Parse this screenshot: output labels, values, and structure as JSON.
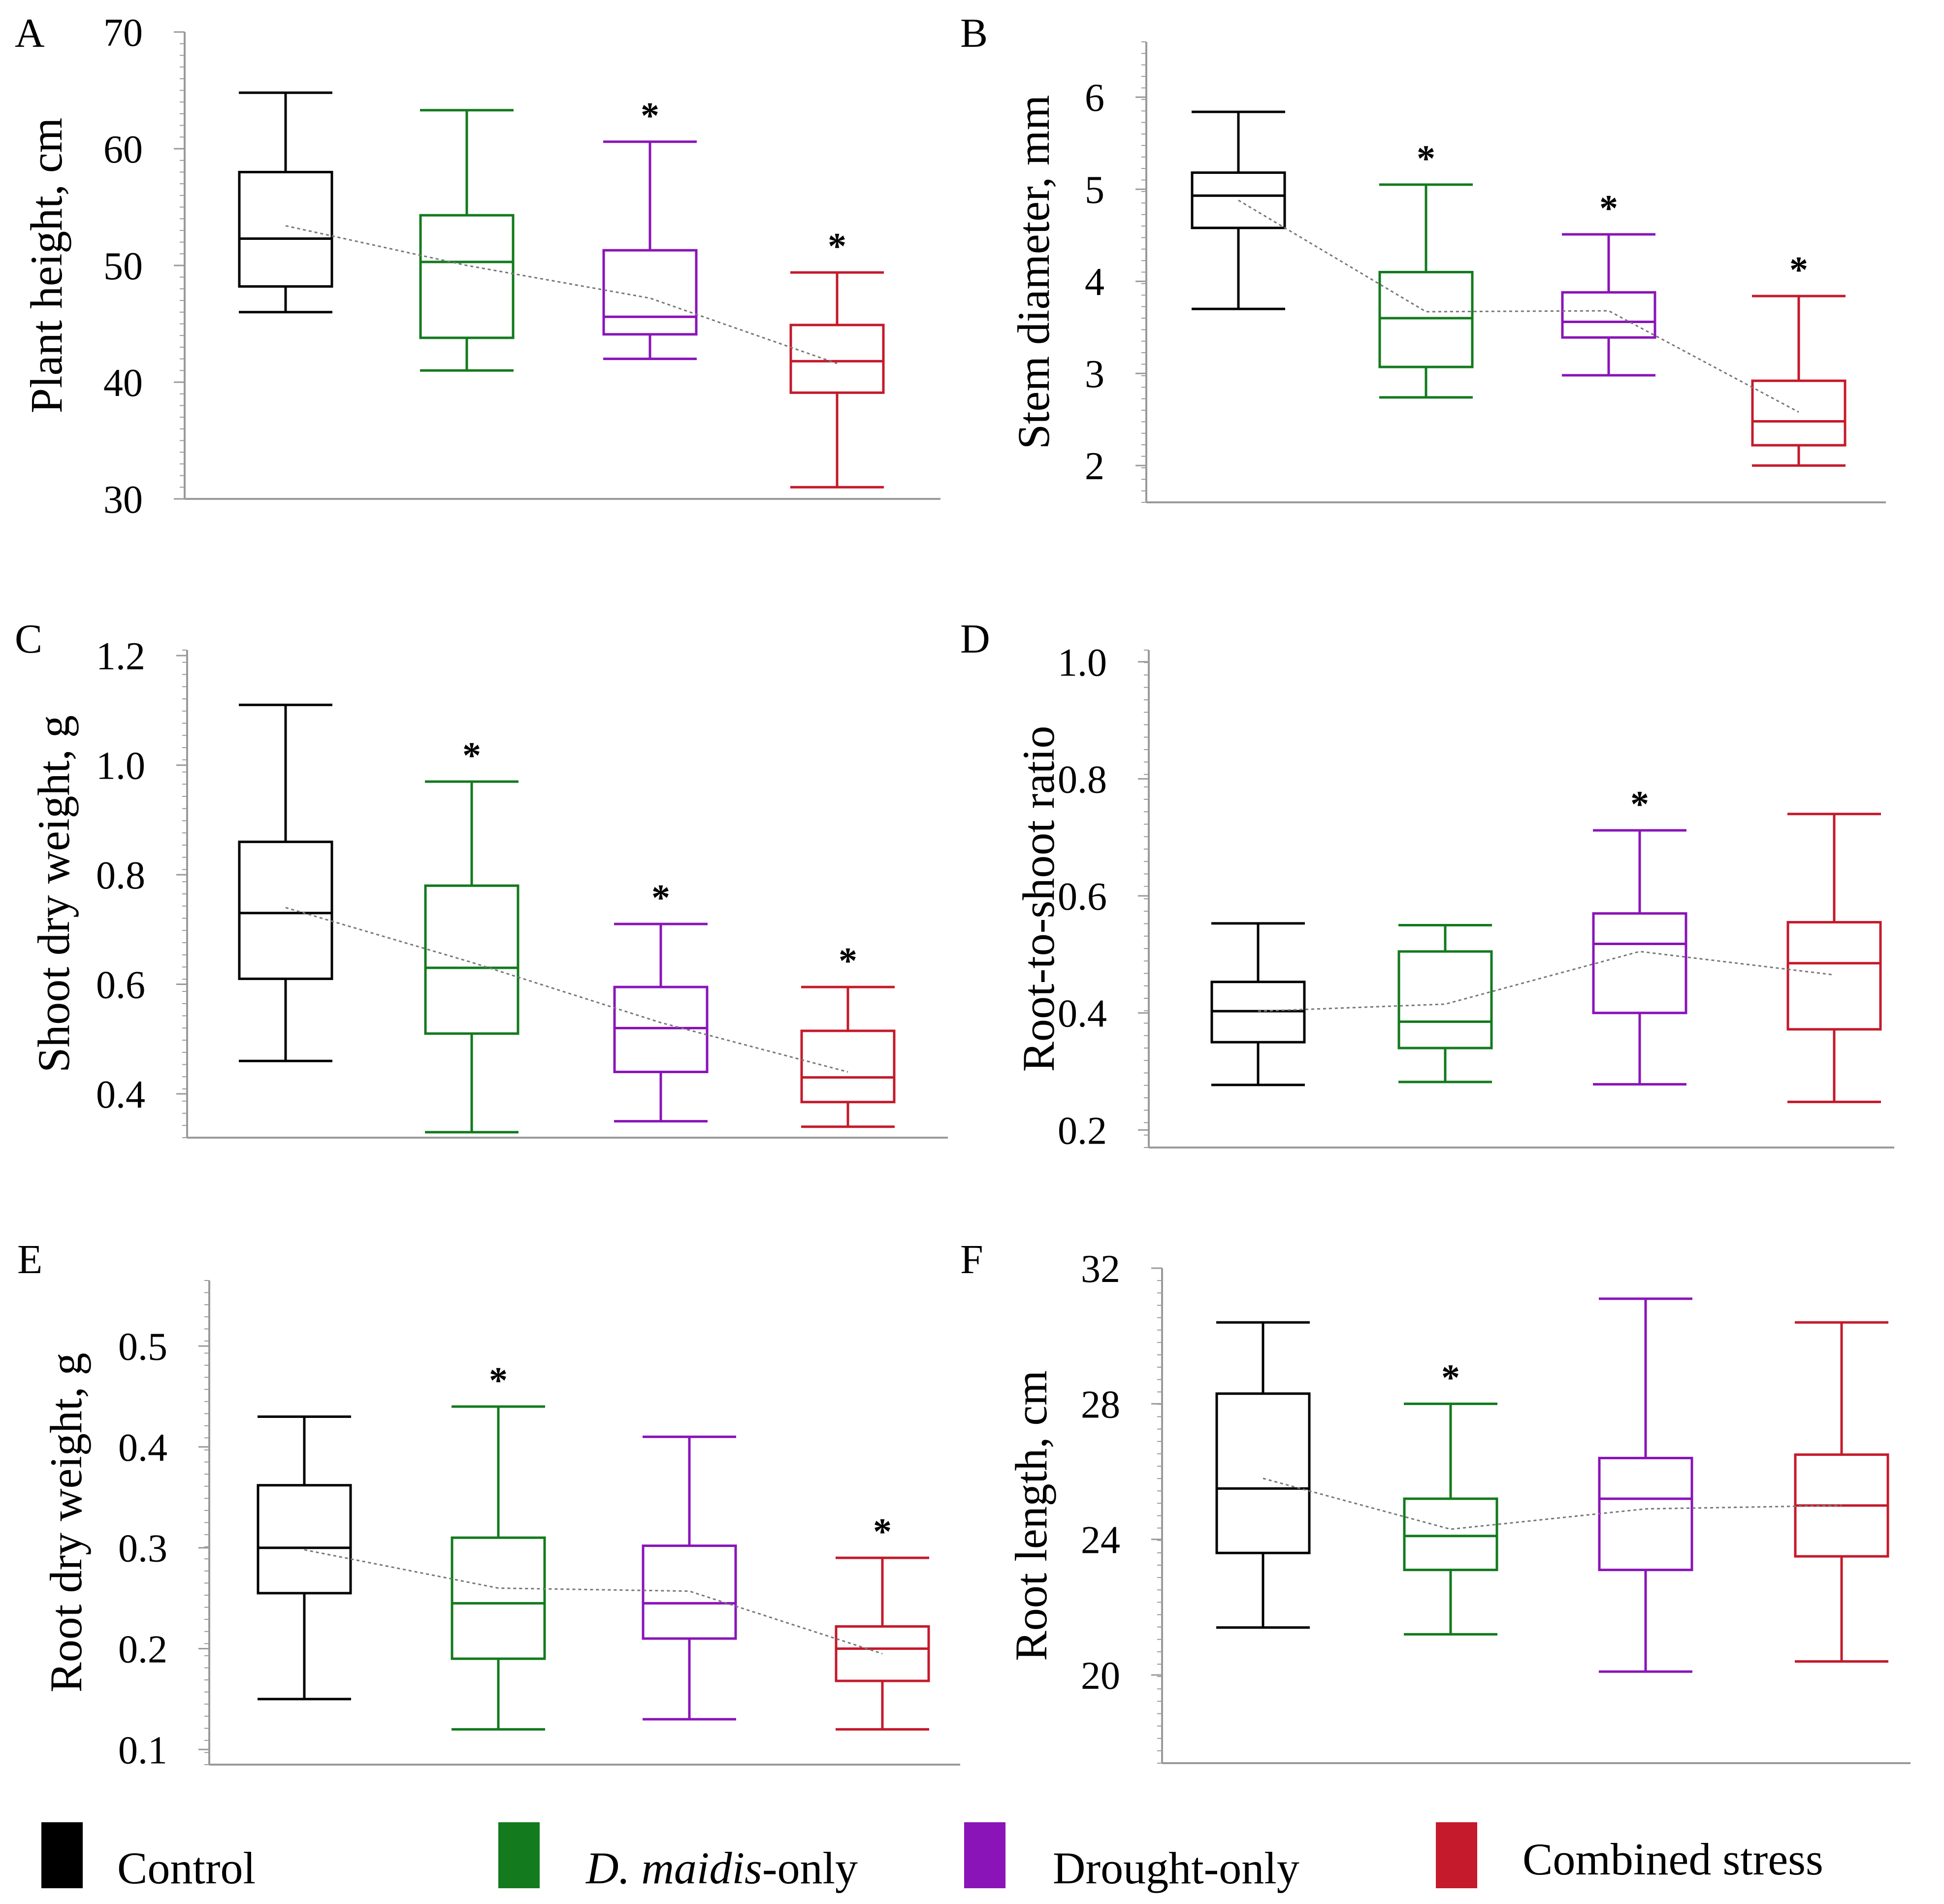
{
  "colors": {
    "control": "#000000",
    "d_maidis": "#137a1e",
    "drought": "#8a14b8",
    "combined": "#c41a2b",
    "trend": "#777777",
    "axis": "#9a9a9a"
  },
  "legend": {
    "control": "Control",
    "d_maidis_species": "D. maidis",
    "d_maidis_suffix": "-only",
    "drought": "Drought-only",
    "combined": "Combined stress"
  },
  "significance_marker": "*",
  "chart_data": [
    {
      "panel": "A",
      "type": "box",
      "ylabel": "Plant height, cm",
      "ylim": [
        30,
        70
      ],
      "yticks": [
        30,
        40,
        50,
        60,
        70
      ],
      "ytick_labels": [
        "30",
        "40",
        "50",
        "60",
        "70"
      ],
      "groups": [
        "Control",
        "D. maidis-only",
        "Drought-only",
        "Combined stress"
      ],
      "boxes": [
        {
          "min": 46.0,
          "q1": 48.2,
          "median": 52.3,
          "q3": 58.0,
          "max": 64.8,
          "mean": 53.4,
          "sig": false
        },
        {
          "min": 41.0,
          "q1": 43.8,
          "median": 50.3,
          "q3": 54.3,
          "max": 63.3,
          "mean": 50.0,
          "sig": false
        },
        {
          "min": 42.0,
          "q1": 44.1,
          "median": 45.6,
          "q3": 51.3,
          "max": 60.6,
          "mean": 47.2,
          "sig": true
        },
        {
          "min": 31.0,
          "q1": 39.1,
          "median": 41.8,
          "q3": 44.9,
          "max": 49.4,
          "mean": 41.6,
          "sig": true
        }
      ]
    },
    {
      "panel": "B",
      "type": "box",
      "ylabel": "Stem diameter, mm",
      "ylim": [
        1.6,
        6.6
      ],
      "yticks": [
        2,
        3,
        4,
        5,
        6
      ],
      "ytick_labels": [
        "2",
        "3",
        "4",
        "5",
        "6"
      ],
      "groups": [
        "Control",
        "D. maidis-only",
        "Drought-only",
        "Combined stress"
      ],
      "boxes": [
        {
          "min": 3.7,
          "q1": 4.58,
          "median": 4.93,
          "q3": 5.18,
          "max": 5.84,
          "mean": 4.88,
          "sig": false
        },
        {
          "min": 2.74,
          "q1": 3.07,
          "median": 3.6,
          "q3": 4.1,
          "max": 5.05,
          "mean": 3.67,
          "sig": true
        },
        {
          "min": 2.98,
          "q1": 3.39,
          "median": 3.56,
          "q3": 3.88,
          "max": 4.51,
          "mean": 3.68,
          "sig": true
        },
        {
          "min": 2.0,
          "q1": 2.22,
          "median": 2.48,
          "q3": 2.92,
          "max": 3.84,
          "mean": 2.58,
          "sig": true
        }
      ]
    },
    {
      "panel": "C",
      "type": "box",
      "ylabel": "Shoot dry weight, g",
      "ylim": [
        0.32,
        1.21
      ],
      "yticks": [
        0.4,
        0.6,
        0.8,
        1.0,
        1.2
      ],
      "ytick_labels": [
        "0.4",
        "0.6",
        "0.8",
        "1.0",
        "1.2"
      ],
      "groups": [
        "Control",
        "D. maidis-only",
        "Drought-only",
        "Combined stress"
      ],
      "boxes": [
        {
          "min": 0.46,
          "q1": 0.61,
          "median": 0.73,
          "q3": 0.86,
          "max": 1.11,
          "mean": 0.74,
          "sig": false
        },
        {
          "min": 0.33,
          "q1": 0.51,
          "median": 0.63,
          "q3": 0.78,
          "max": 0.97,
          "mean": 0.64,
          "sig": true
        },
        {
          "min": 0.35,
          "q1": 0.44,
          "median": 0.52,
          "q3": 0.595,
          "max": 0.71,
          "mean": 0.53,
          "sig": true
        },
        {
          "min": 0.34,
          "q1": 0.385,
          "median": 0.43,
          "q3": 0.515,
          "max": 0.595,
          "mean": 0.44,
          "sig": true
        }
      ]
    },
    {
      "panel": "D",
      "type": "box",
      "ylabel": "Root-to-shoot ratio",
      "ylim": [
        0.17,
        1.02
      ],
      "yticks": [
        0.2,
        0.4,
        0.6,
        0.8,
        1.0
      ],
      "ytick_labels": [
        "0.2",
        "0.4",
        "0.6",
        "0.8",
        "1.0"
      ],
      "groups": [
        "Control",
        "D. maidis-only",
        "Drought-only",
        "Combined stress"
      ],
      "boxes": [
        {
          "min": 0.277,
          "q1": 0.35,
          "median": 0.403,
          "q3": 0.453,
          "max": 0.553,
          "mean": 0.403,
          "sig": false
        },
        {
          "min": 0.282,
          "q1": 0.34,
          "median": 0.385,
          "q3": 0.505,
          "max": 0.55,
          "mean": 0.415,
          "sig": false
        },
        {
          "min": 0.278,
          "q1": 0.4,
          "median": 0.518,
          "q3": 0.57,
          "max": 0.712,
          "mean": 0.505,
          "sig": true
        },
        {
          "min": 0.248,
          "q1": 0.372,
          "median": 0.485,
          "q3": 0.555,
          "max": 0.74,
          "mean": 0.465,
          "sig": false
        }
      ]
    },
    {
      "panel": "E",
      "type": "box",
      "ylabel": "Root dry weight, g",
      "ylim": [
        0.085,
        0.565
      ],
      "yticks": [
        0.1,
        0.2,
        0.3,
        0.4,
        0.5
      ],
      "ytick_labels": [
        "0.1",
        "0.2",
        "0.3",
        "0.4",
        "0.5"
      ],
      "groups": [
        "Control",
        "D. maidis-only",
        "Drought-only",
        "Combined stress"
      ],
      "boxes": [
        {
          "min": 0.15,
          "q1": 0.255,
          "median": 0.3,
          "q3": 0.362,
          "max": 0.43,
          "mean": 0.298,
          "sig": false
        },
        {
          "min": 0.12,
          "q1": 0.19,
          "median": 0.245,
          "q3": 0.31,
          "max": 0.44,
          "mean": 0.26,
          "sig": true
        },
        {
          "min": 0.13,
          "q1": 0.21,
          "median": 0.245,
          "q3": 0.302,
          "max": 0.41,
          "mean": 0.257,
          "sig": false
        },
        {
          "min": 0.12,
          "q1": 0.168,
          "median": 0.2,
          "q3": 0.222,
          "max": 0.29,
          "mean": 0.195,
          "sig": true
        }
      ]
    },
    {
      "panel": "F",
      "type": "box",
      "ylabel": "Root length, cm",
      "ylim": [
        17.4,
        32.0
      ],
      "yticks": [
        20,
        24,
        28,
        32
      ],
      "ytick_labels": [
        "20",
        "24",
        "28",
        "32"
      ],
      "groups": [
        "Control",
        "D. maidis-only",
        "Drought-only",
        "Combined stress"
      ],
      "boxes": [
        {
          "min": 21.4,
          "q1": 23.6,
          "median": 25.5,
          "q3": 28.3,
          "max": 30.4,
          "mean": 25.8,
          "sig": false
        },
        {
          "min": 21.2,
          "q1": 23.1,
          "median": 24.1,
          "q3": 25.2,
          "max": 28.0,
          "mean": 24.3,
          "sig": true
        },
        {
          "min": 20.1,
          "q1": 23.1,
          "median": 25.2,
          "q3": 26.4,
          "max": 31.1,
          "mean": 24.9,
          "sig": false
        },
        {
          "min": 20.4,
          "q1": 23.5,
          "median": 25.0,
          "q3": 26.5,
          "max": 30.4,
          "mean": 25.0,
          "sig": false
        }
      ]
    }
  ]
}
